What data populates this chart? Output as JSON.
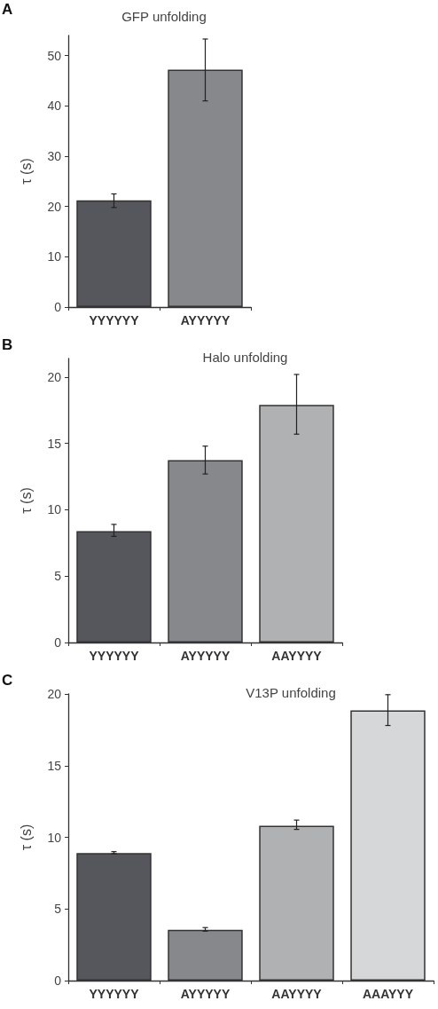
{
  "chart_data": [
    {
      "type": "bar",
      "title": "GFP unfolding",
      "ylabel": "τ (s)",
      "annotations": [
        "A"
      ],
      "categories": [
        "YYYYYY",
        "AYYYYY"
      ],
      "values": [
        21.2,
        47.2
      ],
      "colors": [
        "#55575c",
        "#86888b"
      ],
      "errors": [
        [
          19.8,
          22.5
        ],
        [
          41,
          53.3
        ]
      ],
      "ylim": [
        0,
        54
      ],
      "yticks": [
        0,
        10,
        20,
        30,
        40,
        50
      ],
      "grid": false
    },
    {
      "type": "bar",
      "title": "Halo unfolding",
      "ylabel": "τ (s)",
      "annotations": [
        "B"
      ],
      "categories": [
        "YYYYYY",
        "AYYYYY",
        "AAYYYY"
      ],
      "values": [
        8.4,
        13.75,
        17.9
      ],
      "colors": [
        "#55575c",
        "#86888b",
        "#b0b1b3"
      ],
      "errors": [
        [
          8.0,
          8.9
        ],
        [
          12.7,
          14.8
        ],
        [
          15.7,
          20.2
        ]
      ],
      "ylim": [
        0,
        21.4
      ],
      "yticks": [
        0,
        5,
        10,
        15,
        20
      ],
      "grid": false
    },
    {
      "type": "bar",
      "title": "V13P unfolding",
      "ylabel": "τ (s)",
      "annotations": [
        "C"
      ],
      "categories": [
        "YYYYYY",
        "AYYYYY",
        "AAYYYY",
        "AAAYYY"
      ],
      "values": [
        8.9,
        3.55,
        10.8,
        18.85
      ],
      "colors": [
        "#55575c",
        "#86888b",
        "#b0b1b3",
        "#d6d7d8"
      ],
      "errors": [
        [
          8.85,
          9.0
        ],
        [
          3.45,
          3.7
        ],
        [
          10.55,
          11.2
        ],
        [
          17.8,
          19.95
        ]
      ],
      "ylim": [
        0,
        20
      ],
      "yticks": [
        0,
        5,
        10,
        15,
        20
      ],
      "grid": false
    }
  ]
}
